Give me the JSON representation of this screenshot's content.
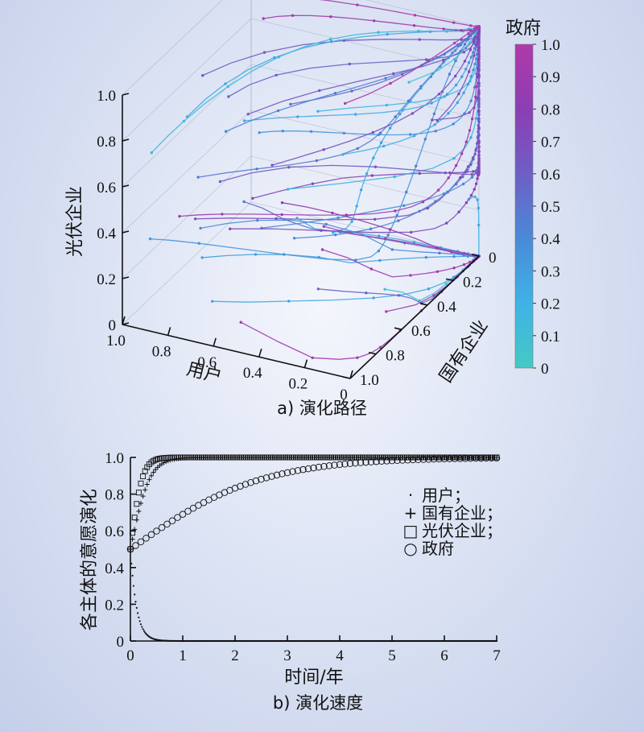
{
  "chart_data": [
    {
      "type": "line",
      "subtype": "3d-trajectory",
      "caption": "a) 演化路径",
      "axes": {
        "x": {
          "label": "用户",
          "ticks": [
            "1.0",
            "0.8",
            "0.6",
            "0.4",
            "0.2",
            "0"
          ],
          "range": [
            1,
            0
          ]
        },
        "y": {
          "label": "国有企业",
          "ticks": [
            "0",
            "0.2",
            "0.4",
            "0.6",
            "0.8",
            "1.0"
          ],
          "range": [
            0,
            1
          ]
        },
        "z": {
          "label": "光伏企业",
          "ticks": [
            "0",
            "0.2",
            "0.4",
            "0.6",
            "0.8",
            "1.0"
          ],
          "range": [
            0,
            1
          ]
        }
      },
      "colorbar": {
        "label": "政府",
        "ticks": [
          "1.0",
          "0.9",
          "0.8",
          "0.7",
          "0.6",
          "0.5",
          "0.4",
          "0.3",
          "0.2",
          "0.1",
          "0"
        ],
        "range": [
          0,
          1
        ],
        "colors": [
          "#45c9c4",
          "#3fb2e6",
          "#4a8ad8",
          "#6e5fc5",
          "#8b3eb3",
          "#b03aa9"
        ]
      },
      "convergence_point": {
        "user": 0,
        "state_enterprise": 1,
        "pv_enterprise": 1
      }
    },
    {
      "type": "scatter",
      "caption": "b) 演化速度",
      "xlabel": "时间/年",
      "ylabel": "各主体的意愿演化",
      "xlim": [
        0,
        7
      ],
      "ylim": [
        0,
        1
      ],
      "xticks": [
        "0",
        "1",
        "2",
        "3",
        "4",
        "5",
        "6",
        "7"
      ],
      "yticks": [
        "0",
        "0.2",
        "0.4",
        "0.6",
        "0.8",
        "1.0"
      ],
      "legend_position": "right",
      "series": [
        {
          "name": "用户；",
          "marker": "dot",
          "symbol": "·",
          "x0": 0.5,
          "model": "decay",
          "rate": 8.5
        },
        {
          "name": "国有企业；",
          "marker": "plus",
          "symbol": "+",
          "x0": 0.5,
          "model": "logistic",
          "rate": 5.5
        },
        {
          "name": "光伏企业；",
          "marker": "square",
          "symbol": "□",
          "x0": 0.5,
          "model": "logistic",
          "rate": 9.0
        },
        {
          "name": "政府",
          "marker": "circle",
          "symbol": "○",
          "x0": 0.5,
          "model": "logistic",
          "rate": 0.8
        }
      ],
      "time_step": 0.05
    }
  ]
}
